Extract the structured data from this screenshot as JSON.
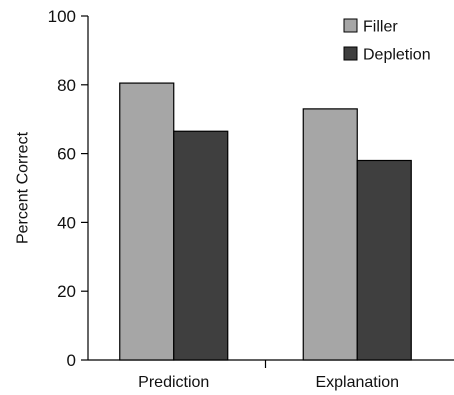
{
  "chart_data": {
    "type": "bar",
    "title": "",
    "xlabel": "",
    "ylabel": "Percent Correct",
    "categories": [
      "Prediction",
      "Explanation"
    ],
    "series": [
      {
        "name": "Filler",
        "values": [
          80.5,
          73
        ],
        "color": "#a6a6a6"
      },
      {
        "name": "Depletion",
        "values": [
          66.5,
          58
        ],
        "color": "#3f3f3f"
      }
    ],
    "ylim": [
      0,
      100
    ],
    "yticks": [
      0,
      20,
      40,
      60,
      80,
      100
    ],
    "grid": false,
    "legend": {
      "placement": "top-right"
    },
    "bar_edge_color": "#000000"
  }
}
